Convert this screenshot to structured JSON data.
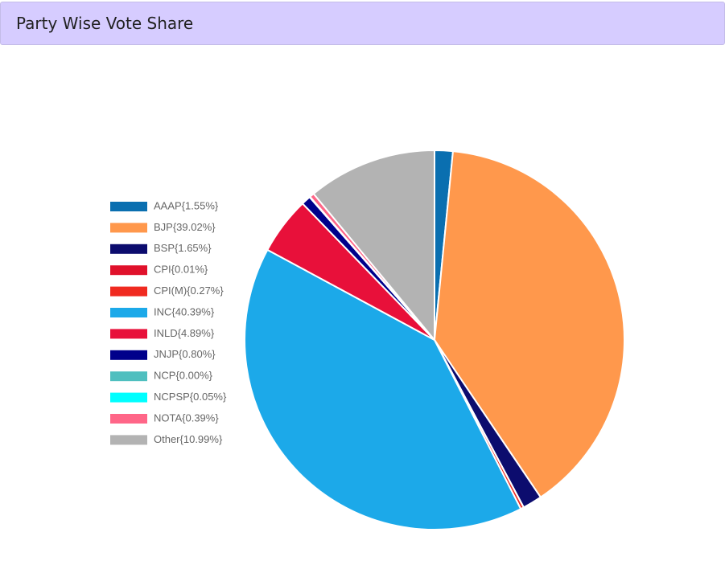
{
  "chart_data": {
    "type": "pie",
    "title": "Party Wise Vote Share",
    "categories": [
      "AAAP{1.55%}",
      "BJP{39.02%}",
      "BSP{1.65%}",
      "CPI{0.01%}",
      "CPI(M){0.27%}",
      "INC{40.39%}",
      "INLD{4.89%}",
      "JNJP{0.80%}",
      "NCP{0.00%}",
      "NCPSP{0.05%}",
      "NOTA{0.39%}",
      "Other{10.99%}"
    ],
    "values": [
      1.55,
      39.02,
      1.65,
      0.01,
      0.27,
      40.39,
      4.89,
      0.8,
      0.0,
      0.05,
      0.39,
      10.99
    ],
    "colors": [
      "#0a6fb0",
      "#ff984c",
      "#0c0c6e",
      "#e0112b",
      "#f02a20",
      "#1ca9e9",
      "#e8103a",
      "#00008b",
      "#4fbfbf",
      "#00ffff",
      "#ff6688",
      "#b3b3b3"
    ],
    "legend": "left"
  }
}
